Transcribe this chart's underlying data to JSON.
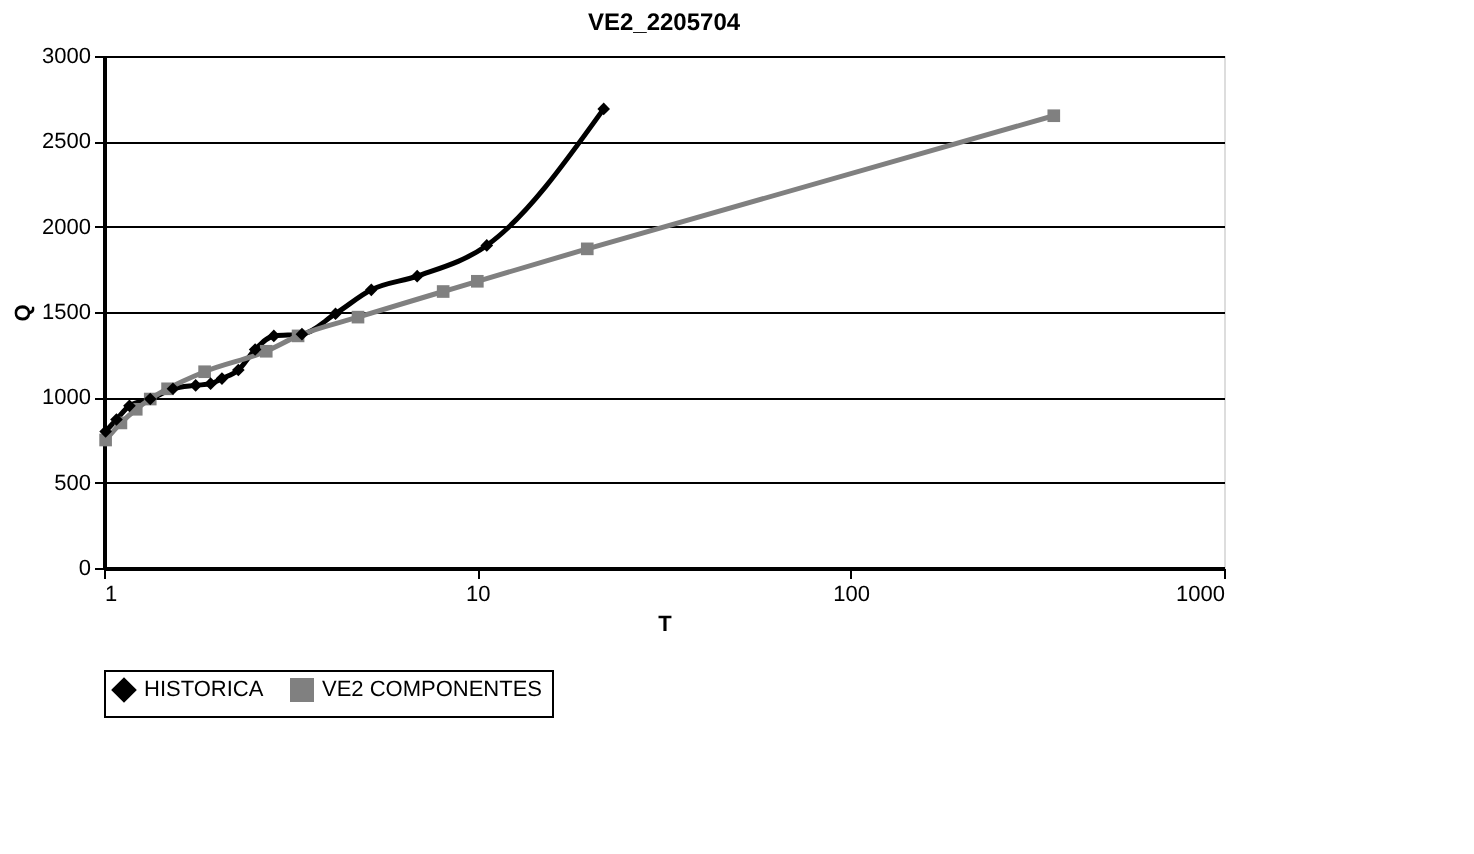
{
  "chart_data": {
    "type": "line",
    "title": "VE2_2205704",
    "xlabel": "T",
    "ylabel": "Q",
    "log": "x",
    "xlim": [
      1,
      1000
    ],
    "xticks": [
      1,
      10,
      100,
      1000
    ],
    "ylim": [
      0,
      3000
    ],
    "yticks": [
      0,
      500,
      1000,
      1500,
      2000,
      2500,
      3000
    ],
    "grid": "y",
    "legend": "bottom",
    "series": [
      {
        "name": "HISTORICA",
        "color": "#000000",
        "marker": "diamond",
        "x": [
          1.01,
          1.08,
          1.17,
          1.33,
          1.53,
          1.76,
          1.93,
          2.07,
          2.29,
          2.54,
          2.85,
          3.39,
          4.17,
          5.2,
          6.9,
          10.6,
          21.8
        ],
        "values": [
          800,
          870,
          950,
          990,
          1050,
          1070,
          1080,
          1110,
          1160,
          1280,
          1360,
          1370,
          1490,
          1630,
          1710,
          1890,
          2690
        ]
      },
      {
        "name": "VE2 COMPONENTES",
        "color": "#808080",
        "marker": "square",
        "x": [
          1.01,
          1.11,
          1.22,
          1.33,
          1.48,
          1.86,
          2.72,
          3.31,
          4.79,
          8.1,
          10,
          19.7,
          350
        ],
        "values": [
          750,
          850,
          930,
          990,
          1050,
          1150,
          1270,
          1360,
          1470,
          1620,
          1680,
          1870,
          2650
        ]
      }
    ]
  }
}
